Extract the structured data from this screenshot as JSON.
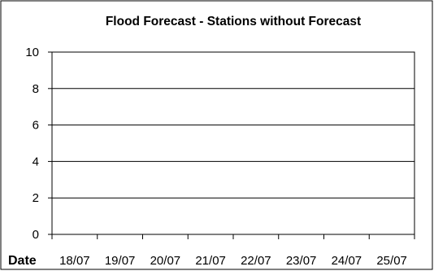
{
  "chart_data": {
    "type": "line",
    "title": "Flood Forecast - Stations without Forecast",
    "xlabel": "Date",
    "ylabel": "",
    "categories": [
      "18/07",
      "19/07",
      "20/07",
      "21/07",
      "22/07",
      "23/07",
      "24/07",
      "25/07"
    ],
    "series": [],
    "ylim": [
      0,
      10
    ],
    "yticks": [
      0,
      2,
      4,
      6,
      8,
      10
    ],
    "grid": true,
    "legend": "none"
  }
}
